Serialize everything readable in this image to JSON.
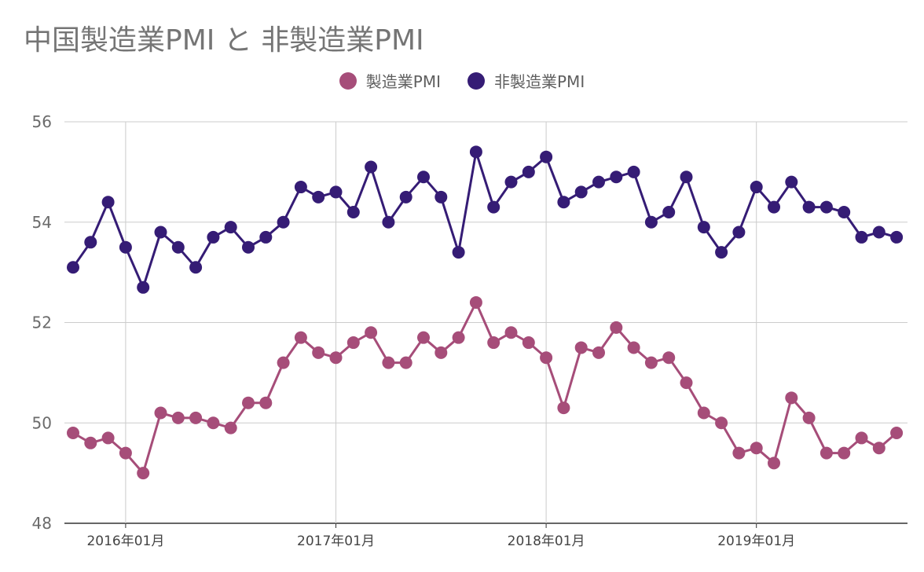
{
  "chart_data": {
    "type": "line",
    "title": "中国製造業PMI と 非製造業PMI",
    "xlabel": "",
    "ylabel": "",
    "ylim": [
      48,
      56
    ],
    "y_ticks": [
      48,
      50,
      52,
      54,
      56
    ],
    "x_start": "2015-10",
    "x_tick_labels": [
      "2016年01月",
      "2017年01月",
      "2018年01月",
      "2019年01月"
    ],
    "grid": true,
    "legend_position": "top-center",
    "series": [
      {
        "name": "製造業PMI",
        "color": "#a64d79",
        "values": [
          49.8,
          49.6,
          49.7,
          49.4,
          49.0,
          50.2,
          50.1,
          50.1,
          50.0,
          49.9,
          50.4,
          50.4,
          51.2,
          51.7,
          51.4,
          51.3,
          51.6,
          51.8,
          51.2,
          51.2,
          51.7,
          51.4,
          51.7,
          52.4,
          51.6,
          51.8,
          51.6,
          51.3,
          50.3,
          51.5,
          51.4,
          51.9,
          51.5,
          51.2,
          51.3,
          50.8,
          50.2,
          50.0,
          49.4,
          49.5,
          49.2,
          50.5,
          50.1,
          49.4,
          49.4,
          49.7,
          49.5,
          49.8
        ]
      },
      {
        "name": "非製造業PMI",
        "color": "#351c75",
        "values": [
          53.1,
          53.6,
          54.4,
          53.5,
          52.7,
          53.8,
          53.5,
          53.1,
          53.7,
          53.9,
          53.5,
          53.7,
          54.0,
          54.7,
          54.5,
          54.6,
          54.2,
          55.1,
          54.0,
          54.5,
          54.9,
          54.5,
          53.4,
          55.4,
          54.3,
          54.8,
          55.0,
          55.3,
          54.4,
          54.6,
          54.8,
          54.9,
          55.0,
          54.0,
          54.2,
          54.9,
          53.9,
          53.4,
          53.8,
          54.7,
          54.3,
          54.8,
          54.3,
          54.3,
          54.2,
          53.7,
          53.8,
          53.7
        ]
      }
    ]
  }
}
